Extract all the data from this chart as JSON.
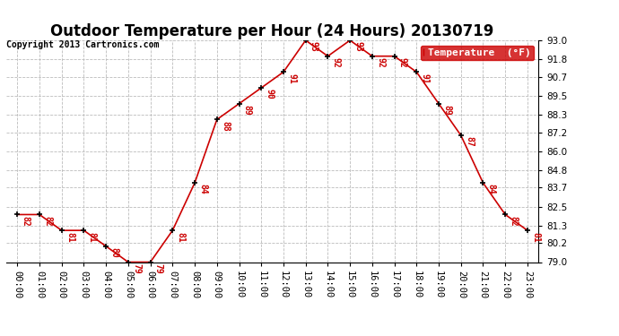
{
  "title": "Outdoor Temperature per Hour (24 Hours) 20130719",
  "copyright_text": "Copyright 2013 Cartronics.com",
  "legend_label": "Temperature  (°F)",
  "hours": [
    "00:00",
    "01:00",
    "02:00",
    "03:00",
    "04:00",
    "05:00",
    "06:00",
    "07:00",
    "08:00",
    "09:00",
    "10:00",
    "11:00",
    "12:00",
    "13:00",
    "14:00",
    "15:00",
    "16:00",
    "17:00",
    "18:00",
    "19:00",
    "20:00",
    "21:00",
    "22:00",
    "23:00"
  ],
  "temperatures": [
    82,
    82,
    81,
    81,
    80,
    79,
    79,
    81,
    84,
    88,
    89,
    90,
    91,
    93,
    92,
    93,
    92,
    92,
    91,
    89,
    87,
    84,
    82,
    81
  ],
  "ylim": [
    79.0,
    93.0
  ],
  "yticks": [
    79.0,
    80.2,
    81.3,
    82.5,
    83.7,
    84.8,
    86.0,
    87.2,
    88.3,
    89.5,
    90.7,
    91.8,
    93.0
  ],
  "line_color": "#cc0000",
  "marker_color": "#000000",
  "bg_color": "#ffffff",
  "grid_color": "#bbbbbb",
  "title_fontsize": 12,
  "copyright_fontsize": 7,
  "tick_fontsize": 7.5,
  "annotation_fontsize": 7,
  "legend_bg": "#cc0000",
  "legend_text_color": "#ffffff",
  "legend_fontsize": 8
}
